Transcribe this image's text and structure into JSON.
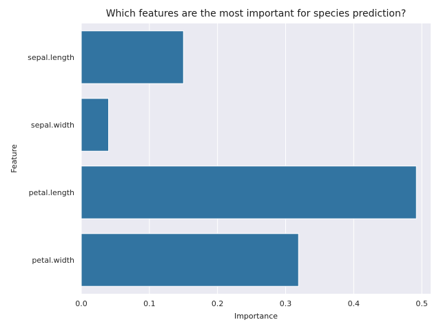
{
  "chart_data": {
    "type": "bar",
    "orientation": "horizontal",
    "title": "Which features are the most important for species prediction?",
    "xlabel": "Importance",
    "ylabel": "Feature",
    "categories": [
      "sepal.length",
      "sepal.width",
      "petal.length",
      "petal.width"
    ],
    "values": [
      0.15,
      0.04,
      0.492,
      0.319
    ],
    "xlim": [
      0.0,
      0.513
    ],
    "xticks": [
      0.0,
      0.1,
      0.2,
      0.3,
      0.4,
      0.5
    ],
    "xtick_labels": [
      "0.0",
      "0.1",
      "0.2",
      "0.3",
      "0.4",
      "0.5"
    ],
    "grid": true,
    "bar_color": "#3274a1",
    "background_color": "#eaeaf2",
    "grid_color": "#ffffff"
  }
}
